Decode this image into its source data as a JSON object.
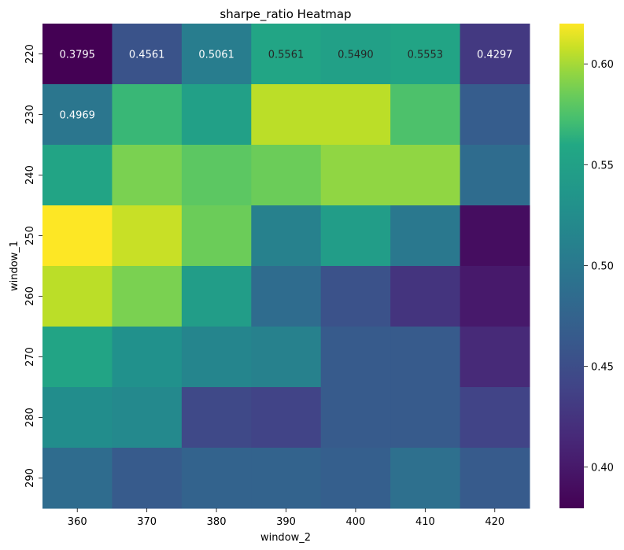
{
  "chart_data": {
    "type": "heatmap",
    "title": "sharpe_ratio Heatmap",
    "xlabel": "window_2",
    "ylabel": "window_1",
    "x_categories": [
      "360",
      "370",
      "380",
      "390",
      "400",
      "410",
      "420"
    ],
    "y_categories": [
      "220",
      "230",
      "240",
      "250",
      "260",
      "270",
      "280",
      "290"
    ],
    "values": [
      [
        0.3795,
        0.4561,
        0.5061,
        0.5561,
        0.549,
        0.5553,
        0.4297
      ],
      [
        0.4969,
        0.568,
        0.55,
        0.605,
        0.605,
        0.575,
        0.468
      ],
      [
        0.555,
        0.59,
        0.58,
        0.585,
        0.595,
        0.595,
        0.485
      ],
      [
        0.62,
        0.608,
        0.585,
        0.51,
        0.545,
        0.5,
        0.39
      ],
      [
        0.605,
        0.59,
        0.545,
        0.485,
        0.455,
        0.425,
        0.4
      ],
      [
        0.555,
        0.53,
        0.515,
        0.51,
        0.465,
        0.465,
        0.415
      ],
      [
        0.525,
        0.52,
        0.445,
        0.44,
        0.465,
        0.465,
        0.44
      ],
      [
        0.485,
        0.465,
        0.475,
        0.475,
        0.47,
        0.49,
        0.465
      ]
    ],
    "annotations": [
      [
        "0.3795",
        "0.4561",
        "0.5061",
        "0.5561",
        "0.5490",
        "0.5553",
        "0.4297"
      ],
      [
        "0.4969",
        "",
        "",
        "",
        "",
        "",
        ""
      ],
      [
        "",
        "",
        "",
        "",
        "",
        "",
        ""
      ],
      [
        "",
        "",
        "",
        "",
        "",
        "",
        ""
      ],
      [
        "",
        "",
        "",
        "",
        "",
        "",
        ""
      ],
      [
        "",
        "",
        "",
        "",
        "",
        "",
        ""
      ],
      [
        "",
        "",
        "",
        "",
        "",
        "",
        ""
      ],
      [
        "",
        "",
        "",
        "",
        "",
        "",
        ""
      ]
    ],
    "colormap": "viridis",
    "vmin": 0.3795,
    "vmax": 0.62,
    "colorbar_ticks": [
      "0.40",
      "0.45",
      "0.50",
      "0.55",
      "0.60"
    ],
    "colorbar_tick_values": [
      0.4,
      0.45,
      0.5,
      0.55,
      0.6
    ]
  }
}
